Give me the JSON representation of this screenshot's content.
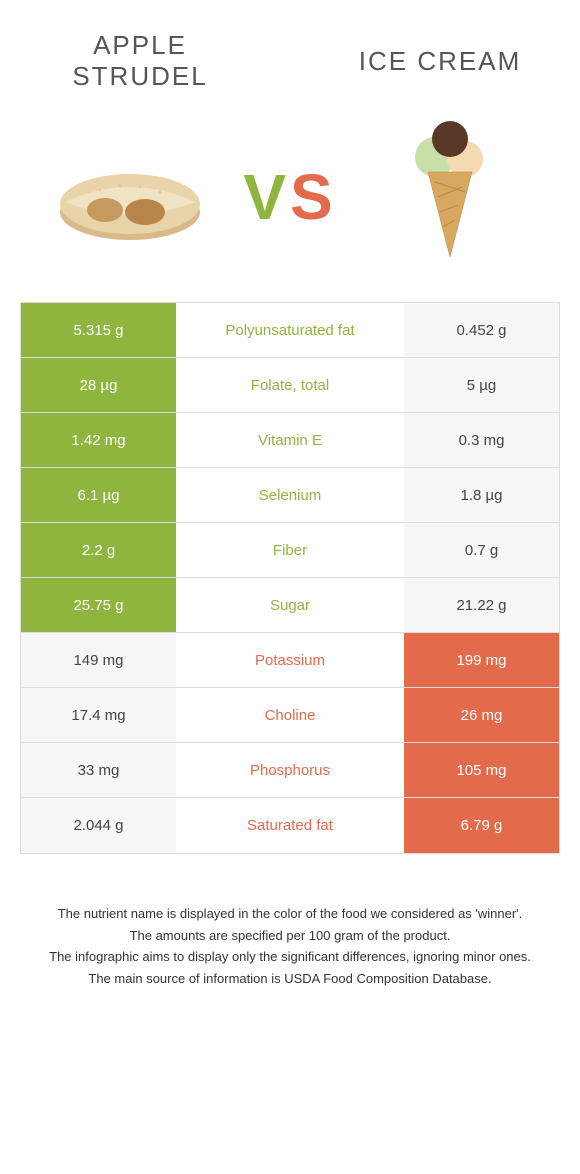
{
  "header": {
    "left_title": "APPLE STRUDEL",
    "right_title": "ICE CREAM",
    "vs_v": "V",
    "vs_s": "S"
  },
  "colors": {
    "green": "#8fb53e",
    "orange": "#e36a4a",
    "light": "#f6f6f6"
  },
  "rows": [
    {
      "left": "5.315 g",
      "mid": "Polyunsaturated fat",
      "right": "0.452 g",
      "winner": "left"
    },
    {
      "left": "28 µg",
      "mid": "Folate, total",
      "right": "5 µg",
      "winner": "left"
    },
    {
      "left": "1.42 mg",
      "mid": "Vitamin E",
      "right": "0.3 mg",
      "winner": "left"
    },
    {
      "left": "6.1 µg",
      "mid": "Selenium",
      "right": "1.8 µg",
      "winner": "left"
    },
    {
      "left": "2.2 g",
      "mid": "Fiber",
      "right": "0.7 g",
      "winner": "left"
    },
    {
      "left": "25.75 g",
      "mid": "Sugar",
      "right": "21.22 g",
      "winner": "left"
    },
    {
      "left": "149 mg",
      "mid": "Potassium",
      "right": "199 mg",
      "winner": "right"
    },
    {
      "left": "17.4 mg",
      "mid": "Choline",
      "right": "26 mg",
      "winner": "right"
    },
    {
      "left": "33 mg",
      "mid": "Phosphorus",
      "right": "105 mg",
      "winner": "right"
    },
    {
      "left": "2.044 g",
      "mid": "Saturated fat",
      "right": "6.79 g",
      "winner": "right"
    }
  ],
  "footer": {
    "line1": "The nutrient name is displayed in the color of the food we considered as 'winner'.",
    "line2": "The amounts are specified per 100 gram of the product.",
    "line3": "The infographic aims to display only the significant differences, ignoring minor ones.",
    "line4": "The main source of information is USDA Food Composition Database."
  }
}
